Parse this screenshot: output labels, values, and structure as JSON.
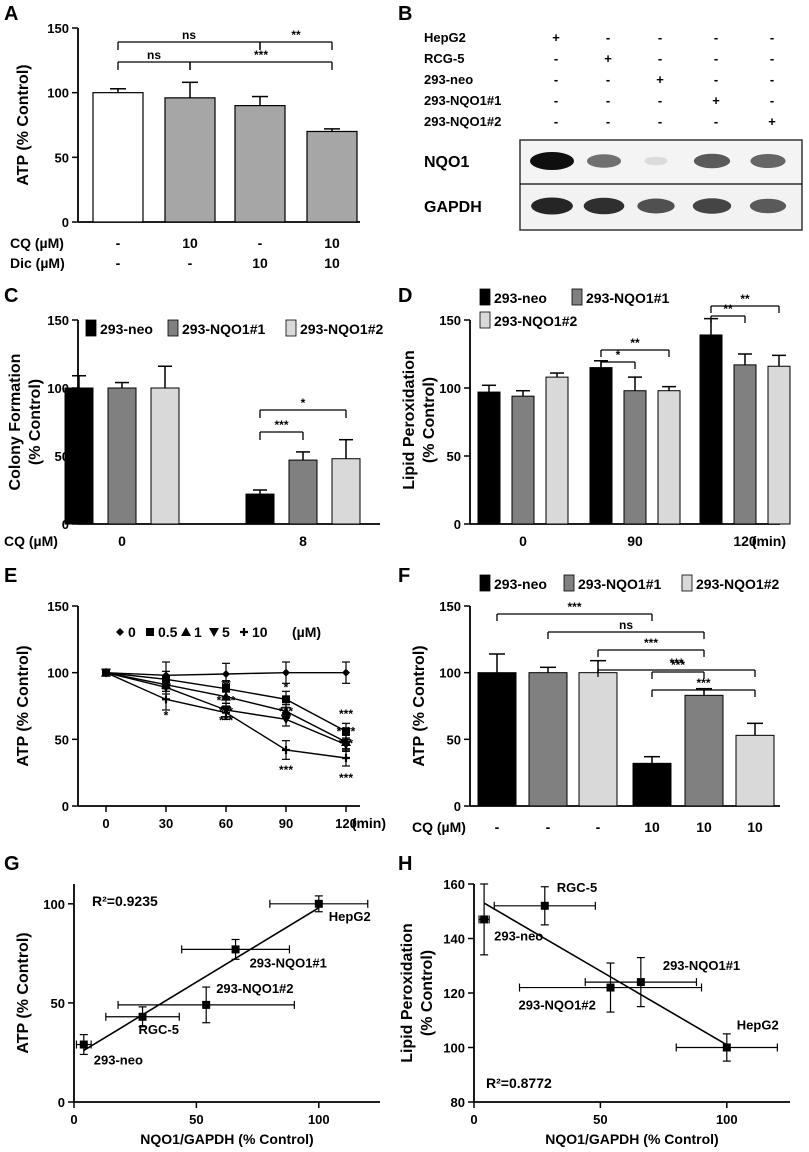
{
  "chart_data": [
    {
      "panel": "A",
      "type": "bar",
      "ylabel": "ATP (% Control)",
      "ylim": [
        0,
        150
      ],
      "yticks": [
        0,
        50,
        100,
        150
      ],
      "values": [
        100,
        96,
        90,
        70
      ],
      "errors": [
        3,
        12,
        7,
        2
      ],
      "colors": [
        "#ffffff",
        "#a6a6a6",
        "#a6a6a6",
        "#a6a6a6"
      ],
      "conditions": [
        {
          "label": "CQ (µM)",
          "values": [
            "-",
            "10",
            "-",
            "10"
          ]
        },
        {
          "label": "Dic (µM)",
          "values": [
            "-",
            "-",
            "10",
            "10"
          ]
        }
      ],
      "significance": [
        {
          "from": 0,
          "to": 1,
          "text": "ns"
        },
        {
          "from": 0,
          "to": 2,
          "text": "ns"
        },
        {
          "from": 2,
          "to": 3,
          "text": "**"
        },
        {
          "from": 1,
          "to": 3,
          "text": "***"
        }
      ]
    },
    {
      "panel": "B",
      "type": "blot",
      "lanes": [
        "HepG2",
        "RCG-5",
        "293-neo",
        "293-NQO1#1",
        "293-NQO1#2"
      ],
      "matrix": [
        [
          "+",
          "-",
          "-",
          "-",
          "-"
        ],
        [
          "-",
          "+",
          "-",
          "-",
          "-"
        ],
        [
          "-",
          "-",
          "+",
          "-",
          "-"
        ],
        [
          "-",
          "-",
          "-",
          "+",
          "-"
        ],
        [
          "-",
          "-",
          "-",
          "-",
          "+"
        ]
      ],
      "bands": [
        {
          "label": "NQO1",
          "intensities": [
            1.0,
            0.55,
            0.05,
            0.65,
            0.6
          ]
        },
        {
          "label": "GAPDH",
          "intensities": [
            0.9,
            0.85,
            0.7,
            0.75,
            0.65
          ]
        }
      ]
    },
    {
      "panel": "C",
      "type": "bar",
      "ylabel": [
        "Colony Formation",
        "(% Control)"
      ],
      "ylim": [
        0,
        150
      ],
      "yticks": [
        0,
        50,
        100,
        150
      ],
      "xlabel_prefix": "CQ (µM)",
      "categories": [
        "0",
        "8"
      ],
      "series": [
        {
          "name": "293-neo",
          "color": "#000000",
          "values": [
            100,
            22
          ],
          "errors": [
            9,
            3
          ]
        },
        {
          "name": "293-NQO1#1",
          "color": "#808080",
          "values": [
            100,
            47
          ],
          "errors": [
            4,
            6
          ]
        },
        {
          "name": "293-NQO1#2",
          "color": "#d9d9d9",
          "values": [
            100,
            48
          ],
          "errors": [
            16,
            14
          ]
        }
      ],
      "significance": [
        {
          "group": 1,
          "from": 0,
          "to": 1,
          "text": "***"
        },
        {
          "group": 1,
          "from": 0,
          "to": 2,
          "text": "*"
        }
      ]
    },
    {
      "panel": "D",
      "type": "bar",
      "ylabel": [
        "Lipid Peroxidation",
        "(% Control)"
      ],
      "ylim": [
        0,
        150
      ],
      "yticks": [
        0,
        50,
        100,
        150
      ],
      "categories": [
        "0",
        "90",
        "120"
      ],
      "xunit": "(min)",
      "series": [
        {
          "name": "293-neo",
          "color": "#000000",
          "values": [
            97,
            115,
            139
          ],
          "errors": [
            5,
            5,
            12
          ]
        },
        {
          "name": "293-NQO1#1",
          "color": "#808080",
          "values": [
            94,
            98,
            117
          ],
          "errors": [
            4,
            10,
            8
          ]
        },
        {
          "name": "293-NQO1#2",
          "color": "#d9d9d9",
          "values": [
            108,
            98,
            116
          ],
          "errors": [
            3,
            3,
            8
          ]
        }
      ],
      "significance": [
        {
          "group": 1,
          "from": 0,
          "to": 1,
          "text": "*"
        },
        {
          "group": 1,
          "from": 0,
          "to": 2,
          "text": "**"
        },
        {
          "group": 2,
          "from": 0,
          "to": 1,
          "text": "**"
        },
        {
          "group": 2,
          "from": 0,
          "to": 2,
          "text": "**"
        }
      ]
    },
    {
      "panel": "E",
      "type": "line",
      "ylabel": "ATP (% Control)",
      "ylim": [
        0,
        150
      ],
      "yticks": [
        0,
        50,
        100,
        150
      ],
      "x": [
        0,
        30,
        60,
        90,
        120
      ],
      "xunit": "(min)",
      "legend_unit": "(µM)",
      "series": [
        {
          "name": "0",
          "marker": "diamond",
          "values": [
            100,
            98,
            99,
            100,
            100
          ],
          "errors": [
            0,
            10,
            8,
            8,
            8
          ]
        },
        {
          "name": "0.5",
          "marker": "square",
          "values": [
            100,
            95,
            88,
            80,
            56
          ],
          "errors": [
            0,
            6,
            6,
            6,
            6
          ]
        },
        {
          "name": "1",
          "marker": "triangle",
          "values": [
            100,
            91,
            82,
            71,
            48
          ],
          "errors": [
            0,
            5,
            5,
            5,
            5
          ]
        },
        {
          "name": "5",
          "marker": "triangle-down",
          "values": [
            100,
            89,
            72,
            65,
            46
          ],
          "errors": [
            0,
            5,
            5,
            5,
            5
          ]
        },
        {
          "name": "10",
          "marker": "cross",
          "values": [
            100,
            80,
            70,
            42,
            36
          ],
          "errors": [
            0,
            8,
            5,
            7,
            6
          ]
        }
      ],
      "annotations": [
        {
          "x": 30,
          "y": 65,
          "text": "*"
        },
        {
          "x": 60,
          "y": 88,
          "text": "**"
        },
        {
          "x": 60,
          "y": 76,
          "text": "****"
        },
        {
          "x": 60,
          "y": 68,
          "text": "***"
        },
        {
          "x": 60,
          "y": 61,
          "text": "***"
        },
        {
          "x": 90,
          "y": 86,
          "text": "*"
        },
        {
          "x": 90,
          "y": 68,
          "text": "***"
        },
        {
          "x": 90,
          "y": 24,
          "text": "***"
        },
        {
          "x": 120,
          "y": 66,
          "text": "***"
        },
        {
          "x": 120,
          "y": 53,
          "text": "****"
        },
        {
          "x": 120,
          "y": 44,
          "text": "***"
        },
        {
          "x": 120,
          "y": 18,
          "text": "***"
        }
      ]
    },
    {
      "panel": "F",
      "type": "bar",
      "ylabel": "ATP (% Control)",
      "ylim": [
        0,
        150
      ],
      "yticks": [
        0,
        50,
        100,
        150
      ],
      "legend": [
        {
          "name": "293-neo",
          "color": "#000000"
        },
        {
          "name": "293-NQO1#1",
          "color": "#808080"
        },
        {
          "name": "293-NQO1#2",
          "color": "#d9d9d9"
        }
      ],
      "values": [
        100,
        100,
        100,
        32,
        83,
        53
      ],
      "errors": [
        14,
        4,
        9,
        5,
        5,
        9
      ],
      "colors": [
        "#000000",
        "#808080",
        "#d9d9d9",
        "#000000",
        "#808080",
        "#d9d9d9"
      ],
      "condition": {
        "label": "CQ (µM)",
        "values": [
          "-",
          "-",
          "-",
          "10",
          "10",
          "10"
        ]
      },
      "significance": [
        {
          "from": 0,
          "to": 3,
          "text": "***"
        },
        {
          "from": 1,
          "to": 4,
          "text": "ns"
        },
        {
          "from": 2,
          "to": 4,
          "text": "***"
        },
        {
          "from": 3,
          "to": 4,
          "text": "***"
        },
        {
          "from": 2,
          "to": 5,
          "text": "***"
        },
        {
          "from": 3,
          "to": 5,
          "text": "***"
        }
      ]
    },
    {
      "panel": "G",
      "type": "scatter",
      "xlabel": "NQO1/GAPDH (% Control)",
      "ylabel": "ATP (% Control)",
      "xlim": [
        0,
        125
      ],
      "ylim": [
        0,
        110
      ],
      "xticks": [
        0,
        50,
        100
      ],
      "yticks": [
        0,
        50,
        100
      ],
      "r2": "R²=0.9235",
      "points": [
        {
          "label": "HepG2",
          "x": 100,
          "y": 100,
          "xerr": 20,
          "yerr": 4
        },
        {
          "label": "293-NQO1#1",
          "x": 66,
          "y": 77,
          "xerr": 22,
          "yerr": 5
        },
        {
          "label": "293-NQO1#2",
          "x": 54,
          "y": 49,
          "xerr": 36,
          "yerr": 9
        },
        {
          "label": "RGC-5",
          "x": 28,
          "y": 43,
          "xerr": 15,
          "yerr": 5
        },
        {
          "label": "293-neo",
          "x": 4,
          "y": 29,
          "xerr": 3,
          "yerr": 5
        }
      ],
      "fit": {
        "x": [
          4,
          100
        ],
        "y": [
          26,
          98
        ]
      }
    },
    {
      "panel": "H",
      "type": "scatter",
      "xlabel": "NQO1/GAPDH (% Control)",
      "ylabel": [
        "Lipid Peroxidation",
        "(% Control)"
      ],
      "xlim": [
        0,
        125
      ],
      "ylim": [
        80,
        160
      ],
      "xticks": [
        0,
        50,
        100
      ],
      "yticks": [
        80,
        100,
        120,
        140,
        160
      ],
      "r2": "R²=0.8772",
      "points": [
        {
          "label": "RGC-5",
          "x": 28,
          "y": 152,
          "xerr": 20,
          "yerr": 7
        },
        {
          "label": "293-neo",
          "x": 4,
          "y": 147,
          "xerr": 2,
          "yerr": 13
        },
        {
          "label": "293-NQO1#1",
          "x": 66,
          "y": 124,
          "xerr": 22,
          "yerr": 9
        },
        {
          "label": "293-NQO1#2",
          "x": 54,
          "y": 122,
          "xerr": 36,
          "yerr": 9
        },
        {
          "label": "HepG2",
          "x": 100,
          "y": 100,
          "xerr": 20,
          "yerr": 5
        }
      ],
      "fit": {
        "x": [
          4,
          100
        ],
        "y": [
          153,
          101
        ]
      }
    }
  ]
}
